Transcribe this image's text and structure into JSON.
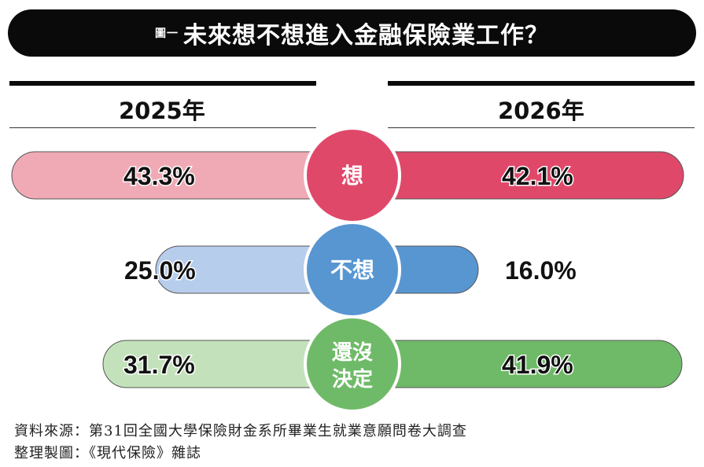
{
  "header": {
    "figure_label": "圖一",
    "title": "未來想不想進入金融保險業工作？"
  },
  "chart_data": {
    "type": "bar",
    "layout": "butterfly",
    "title": "未來想不想進入金融保險業工作？",
    "categories": [
      "想",
      "不想",
      "還沒決定"
    ],
    "series": [
      {
        "name": "2025年",
        "values": [
          43.3,
          25.0,
          31.7
        ],
        "labels": [
          "43.3%",
          "25.0%",
          "31.7%"
        ]
      },
      {
        "name": "2026年",
        "values": [
          42.1,
          16.0,
          41.9
        ],
        "labels": [
          "42.1%",
          "16.0%",
          "41.9%"
        ]
      }
    ],
    "unit": "%",
    "colors": {
      "想": {
        "2025": "#f0aab5",
        "2026": "#e0486a",
        "circle": "#e0486a"
      },
      "不想": {
        "2025": "#b6cdec",
        "2026": "#5896d2",
        "circle": "#5896d2"
      },
      "還沒決定": {
        "2025": "#c3e2bb",
        "2026": "#6fba68",
        "circle": "#6fba68"
      }
    }
  },
  "footer": {
    "source": "資料來源：第31回全國大學保險財金系所畢業生就業意願問卷大調查",
    "compiled_by": "整理製圖：《現代保險》雜誌"
  }
}
